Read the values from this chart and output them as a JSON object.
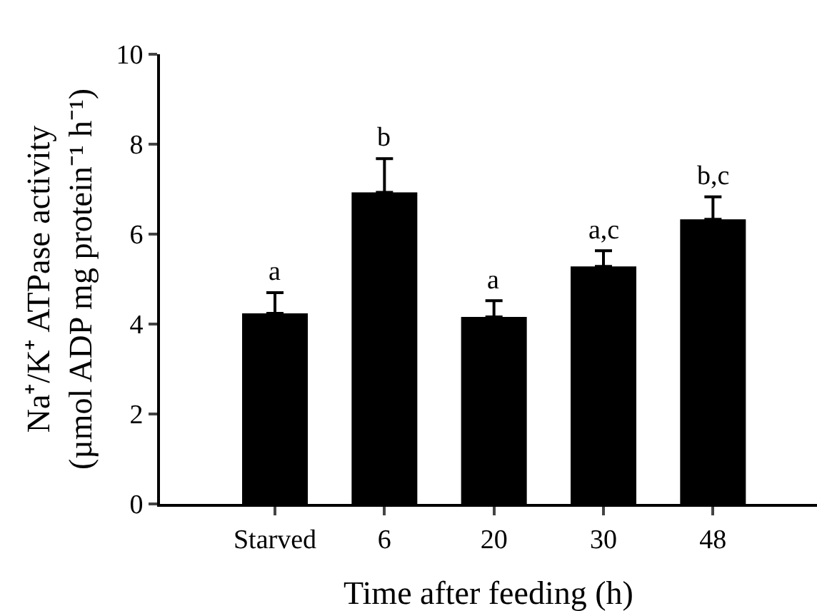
{
  "chart_data": {
    "type": "bar",
    "xlabel": "Time after feeding (h)",
    "ylabel": "Na⁺/K⁺ ATPase activity\n(µmol ADP mg protein⁻¹ h⁻¹)",
    "categories": [
      "Starved",
      "6",
      "20",
      "30",
      "48"
    ],
    "values": [
      4.24,
      6.93,
      4.16,
      5.28,
      6.33
    ],
    "errors": [
      [
        4.24,
        4.7
      ],
      [
        6.93,
        7.68
      ],
      [
        4.16,
        4.52
      ],
      [
        5.28,
        5.63
      ],
      [
        6.33,
        6.83
      ]
    ],
    "color": "#000000",
    "ylim": [
      0,
      10
    ],
    "yticks": [
      0,
      2,
      4,
      6,
      8,
      10
    ],
    "grid": false,
    "annotations": [
      {
        "text": "a",
        "x": "Starved",
        "y": 4.7
      },
      {
        "text": "b",
        "x": "6",
        "y": 7.68
      },
      {
        "text": "a",
        "x": "20",
        "y": 4.52
      },
      {
        "text": "a,c",
        "x": "30",
        "y": 5.63
      },
      {
        "text": "b,c",
        "x": "48",
        "y": 6.83
      }
    ]
  }
}
